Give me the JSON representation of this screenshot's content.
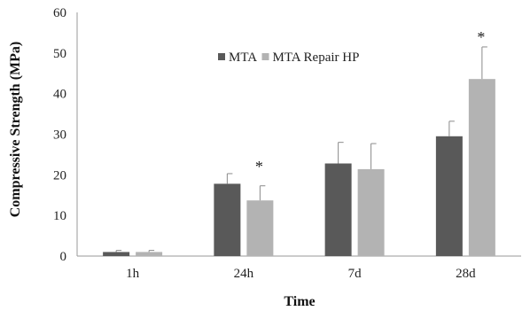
{
  "chart_data": {
    "type": "bar",
    "title": "",
    "xlabel": "Time",
    "ylabel": "Compressive Strength (MPa)",
    "categories": [
      "1h",
      "24h",
      "7d",
      "28d"
    ],
    "ylim": [
      0,
      60
    ],
    "yticks": [
      0,
      10,
      20,
      30,
      40,
      50,
      60
    ],
    "grid": false,
    "legend_position": "top-center",
    "series": [
      {
        "name": "MTA",
        "color": "#595959",
        "values": [
          1.0,
          17.8,
          22.8,
          29.5
        ],
        "errors": [
          0.4,
          2.5,
          5.2,
          3.7
        ]
      },
      {
        "name": "MTA Repair HP",
        "color": "#b3b3b3",
        "values": [
          1.0,
          13.7,
          21.4,
          43.6
        ],
        "errors": [
          0.4,
          3.6,
          6.3,
          7.9
        ]
      }
    ],
    "annotations": [
      {
        "text": "*",
        "category": "24h",
        "y": 22.5
      },
      {
        "text": "*",
        "category": "28d",
        "y": 54.3
      }
    ]
  }
}
